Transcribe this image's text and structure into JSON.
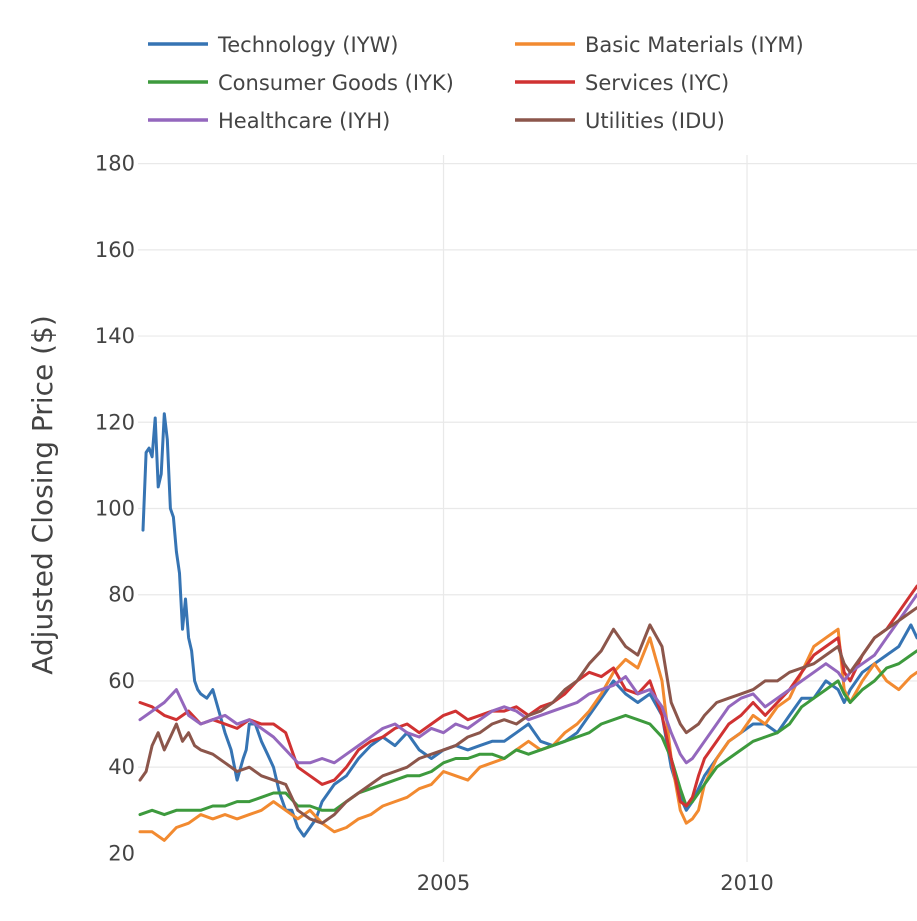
{
  "chart_data": {
    "type": "line",
    "title": "",
    "xlabel": "",
    "ylabel": "Adjusted Closing Price ($)",
    "xlim": [
      2000.0,
      2012.8
    ],
    "ylim": [
      18,
      182
    ],
    "yticks": [
      20,
      40,
      60,
      80,
      100,
      120,
      140,
      160,
      180
    ],
    "xticks": [
      2005,
      2010
    ],
    "grid": true,
    "legend_position": "top",
    "series": [
      {
        "name": "Technology (IYW)",
        "color": "#3674b3",
        "x": [
          2000.05,
          2000.1,
          2000.15,
          2000.2,
          2000.25,
          2000.3,
          2000.35,
          2000.4,
          2000.45,
          2000.5,
          2000.55,
          2000.6,
          2000.65,
          2000.7,
          2000.75,
          2000.8,
          2000.85,
          2000.9,
          2000.95,
          2001.0,
          2001.1,
          2001.2,
          2001.3,
          2001.4,
          2001.5,
          2001.6,
          2001.7,
          2001.75,
          2001.8,
          2001.9,
          2002.0,
          2002.1,
          2002.2,
          2002.3,
          2002.4,
          2002.5,
          2002.6,
          2002.7,
          2002.8,
          2002.9,
          2003.0,
          2003.2,
          2003.4,
          2003.6,
          2003.8,
          2004.0,
          2004.2,
          2004.4,
          2004.6,
          2004.8,
          2005.0,
          2005.2,
          2005.4,
          2005.6,
          2005.8,
          2006.0,
          2006.2,
          2006.4,
          2006.6,
          2006.8,
          2007.0,
          2007.2,
          2007.4,
          2007.6,
          2007.8,
          2008.0,
          2008.2,
          2008.4,
          2008.6,
          2008.75,
          2008.9,
          2009.0,
          2009.1,
          2009.2,
          2009.3,
          2009.5,
          2009.7,
          2009.9,
          2010.1,
          2010.3,
          2010.5,
          2010.7,
          2010.9,
          2011.1,
          2011.3,
          2011.5,
          2011.6,
          2011.7,
          2011.9,
          2012.1,
          2012.3,
          2012.5,
          2012.7,
          2012.8
        ],
        "values": [
          95,
          113,
          114,
          112,
          121,
          105,
          108,
          122,
          116,
          100,
          98,
          90,
          85,
          72,
          79,
          70,
          67,
          60,
          58,
          57,
          56,
          58,
          53,
          48,
          44,
          37,
          42,
          44,
          50,
          50,
          46,
          43,
          40,
          34,
          30,
          30,
          26,
          24,
          26,
          28,
          32,
          36,
          38,
          42,
          45,
          47,
          45,
          48,
          44,
          42,
          44,
          45,
          44,
          45,
          46,
          46,
          48,
          50,
          46,
          45,
          46,
          48,
          52,
          56,
          60,
          57,
          55,
          57,
          52,
          40,
          33,
          30,
          32,
          35,
          38,
          42,
          46,
          48,
          50,
          50,
          48,
          52,
          56,
          56,
          60,
          58,
          55,
          58,
          62,
          64,
          66,
          68,
          73,
          70
        ]
      },
      {
        "name": "Basic Materials (IYM)",
        "color": "#f28a30",
        "x": [
          2000.0,
          2000.2,
          2000.4,
          2000.6,
          2000.8,
          2001.0,
          2001.2,
          2001.4,
          2001.6,
          2001.8,
          2002.0,
          2002.2,
          2002.4,
          2002.6,
          2002.8,
          2003.0,
          2003.2,
          2003.4,
          2003.6,
          2003.8,
          2004.0,
          2004.2,
          2004.4,
          2004.6,
          2004.8,
          2005.0,
          2005.2,
          2005.4,
          2005.6,
          2005.8,
          2006.0,
          2006.2,
          2006.4,
          2006.6,
          2006.8,
          2007.0,
          2007.2,
          2007.4,
          2007.6,
          2007.8,
          2008.0,
          2008.2,
          2008.4,
          2008.6,
          2008.75,
          2008.9,
          2009.0,
          2009.1,
          2009.2,
          2009.3,
          2009.5,
          2009.7,
          2009.9,
          2010.1,
          2010.3,
          2010.5,
          2010.7,
          2010.9,
          2011.1,
          2011.3,
          2011.5,
          2011.6,
          2011.7,
          2011.9,
          2012.1,
          2012.3,
          2012.5,
          2012.7,
          2012.8
        ],
        "values": [
          25,
          25,
          23,
          26,
          27,
          29,
          28,
          29,
          28,
          29,
          30,
          32,
          30,
          28,
          30,
          27,
          25,
          26,
          28,
          29,
          31,
          32,
          33,
          35,
          36,
          39,
          38,
          37,
          40,
          41,
          42,
          44,
          46,
          44,
          45,
          48,
          50,
          53,
          57,
          62,
          65,
          63,
          70,
          60,
          42,
          30,
          27,
          28,
          30,
          36,
          42,
          46,
          48,
          52,
          50,
          54,
          56,
          62,
          68,
          70,
          72,
          58,
          55,
          60,
          64,
          60,
          58,
          61,
          62
        ]
      },
      {
        "name": "Consumer Goods (IYK)",
        "color": "#3d9a3d",
        "x": [
          2000.0,
          2000.2,
          2000.4,
          2000.6,
          2000.8,
          2001.0,
          2001.2,
          2001.4,
          2001.6,
          2001.8,
          2002.0,
          2002.2,
          2002.4,
          2002.6,
          2002.8,
          2003.0,
          2003.2,
          2003.4,
          2003.6,
          2003.8,
          2004.0,
          2004.2,
          2004.4,
          2004.6,
          2004.8,
          2005.0,
          2005.2,
          2005.4,
          2005.6,
          2005.8,
          2006.0,
          2006.2,
          2006.4,
          2006.6,
          2006.8,
          2007.0,
          2007.2,
          2007.4,
          2007.6,
          2007.8,
          2008.0,
          2008.2,
          2008.4,
          2008.6,
          2008.75,
          2008.9,
          2009.0,
          2009.1,
          2009.2,
          2009.3,
          2009.5,
          2009.7,
          2009.9,
          2010.1,
          2010.3,
          2010.5,
          2010.7,
          2010.9,
          2011.1,
          2011.3,
          2011.5,
          2011.6,
          2011.7,
          2011.9,
          2012.1,
          2012.3,
          2012.5,
          2012.7,
          2012.8
        ],
        "values": [
          29,
          30,
          29,
          30,
          30,
          30,
          31,
          31,
          32,
          32,
          33,
          34,
          34,
          31,
          31,
          30,
          30,
          32,
          34,
          35,
          36,
          37,
          38,
          38,
          39,
          41,
          42,
          42,
          43,
          43,
          42,
          44,
          43,
          44,
          45,
          46,
          47,
          48,
          50,
          51,
          52,
          51,
          50,
          47,
          42,
          35,
          31,
          32,
          34,
          36,
          40,
          42,
          44,
          46,
          47,
          48,
          50,
          54,
          56,
          58,
          60,
          57,
          55,
          58,
          60,
          63,
          64,
          66,
          67
        ]
      },
      {
        "name": "Services (IYC)",
        "color": "#d03232",
        "x": [
          2000.0,
          2000.2,
          2000.4,
          2000.6,
          2000.8,
          2001.0,
          2001.2,
          2001.4,
          2001.6,
          2001.8,
          2002.0,
          2002.2,
          2002.4,
          2002.6,
          2002.8,
          2003.0,
          2003.2,
          2003.4,
          2003.6,
          2003.8,
          2004.0,
          2004.2,
          2004.4,
          2004.6,
          2004.8,
          2005.0,
          2005.2,
          2005.4,
          2005.6,
          2005.8,
          2006.0,
          2006.2,
          2006.4,
          2006.6,
          2006.8,
          2007.0,
          2007.2,
          2007.4,
          2007.6,
          2007.8,
          2008.0,
          2008.2,
          2008.4,
          2008.6,
          2008.75,
          2008.9,
          2009.0,
          2009.1,
          2009.2,
          2009.3,
          2009.5,
          2009.7,
          2009.9,
          2010.1,
          2010.3,
          2010.5,
          2010.7,
          2010.9,
          2011.1,
          2011.3,
          2011.5,
          2011.6,
          2011.7,
          2011.9,
          2012.1,
          2012.3,
          2012.5,
          2012.7,
          2012.8
        ],
        "values": [
          55,
          54,
          52,
          51,
          53,
          50,
          51,
          50,
          49,
          51,
          50,
          50,
          48,
          40,
          38,
          36,
          37,
          40,
          44,
          46,
          47,
          49,
          50,
          48,
          50,
          52,
          53,
          51,
          52,
          53,
          53,
          54,
          52,
          54,
          55,
          57,
          60,
          62,
          61,
          63,
          58,
          57,
          60,
          52,
          42,
          32,
          31,
          33,
          38,
          42,
          46,
          50,
          52,
          55,
          52,
          55,
          58,
          62,
          66,
          68,
          70,
          62,
          60,
          66,
          70,
          72,
          76,
          80,
          82
        ]
      },
      {
        "name": "Healthcare (IYH)",
        "color": "#9467bd",
        "x": [
          2000.0,
          2000.2,
          2000.4,
          2000.6,
          2000.8,
          2001.0,
          2001.2,
          2001.4,
          2001.6,
          2001.8,
          2002.0,
          2002.2,
          2002.4,
          2002.6,
          2002.8,
          2003.0,
          2003.2,
          2003.4,
          2003.6,
          2003.8,
          2004.0,
          2004.2,
          2004.4,
          2004.6,
          2004.8,
          2005.0,
          2005.2,
          2005.4,
          2005.6,
          2005.8,
          2006.0,
          2006.2,
          2006.4,
          2006.6,
          2006.8,
          2007.0,
          2007.2,
          2007.4,
          2007.6,
          2007.8,
          2008.0,
          2008.2,
          2008.4,
          2008.6,
          2008.75,
          2008.9,
          2009.0,
          2009.1,
          2009.2,
          2009.3,
          2009.5,
          2009.7,
          2009.9,
          2010.1,
          2010.3,
          2010.5,
          2010.7,
          2010.9,
          2011.1,
          2011.3,
          2011.5,
          2011.6,
          2011.7,
          2011.9,
          2012.1,
          2012.3,
          2012.5,
          2012.7,
          2012.8
        ],
        "values": [
          51,
          53,
          55,
          58,
          52,
          50,
          51,
          52,
          50,
          51,
          49,
          47,
          44,
          41,
          41,
          42,
          41,
          43,
          45,
          47,
          49,
          50,
          48,
          47,
          49,
          48,
          50,
          49,
          51,
          53,
          54,
          53,
          51,
          52,
          53,
          54,
          55,
          57,
          58,
          59,
          61,
          57,
          58,
          54,
          48,
          43,
          41,
          42,
          44,
          46,
          50,
          54,
          56,
          57,
          54,
          56,
          58,
          60,
          62,
          64,
          62,
          60,
          62,
          64,
          66,
          70,
          74,
          78,
          80
        ]
      },
      {
        "name": "Utilities (IDU)",
        "color": "#8c564b",
        "x": [
          2000.0,
          2000.1,
          2000.2,
          2000.3,
          2000.4,
          2000.5,
          2000.6,
          2000.7,
          2000.8,
          2000.9,
          2001.0,
          2001.2,
          2001.4,
          2001.6,
          2001.8,
          2002.0,
          2002.2,
          2002.4,
          2002.6,
          2002.8,
          2003.0,
          2003.2,
          2003.4,
          2003.6,
          2003.8,
          2004.0,
          2004.2,
          2004.4,
          2004.6,
          2004.8,
          2005.0,
          2005.2,
          2005.4,
          2005.6,
          2005.8,
          2006.0,
          2006.2,
          2006.4,
          2006.6,
          2006.8,
          2007.0,
          2007.2,
          2007.4,
          2007.6,
          2007.8,
          2008.0,
          2008.2,
          2008.4,
          2008.6,
          2008.75,
          2008.9,
          2009.0,
          2009.1,
          2009.2,
          2009.3,
          2009.5,
          2009.7,
          2009.9,
          2010.1,
          2010.3,
          2010.5,
          2010.7,
          2010.9,
          2011.1,
          2011.3,
          2011.5,
          2011.6,
          2011.7,
          2011.9,
          2012.1,
          2012.3,
          2012.5,
          2012.7,
          2012.8
        ],
        "values": [
          37,
          39,
          45,
          48,
          44,
          47,
          50,
          46,
          48,
          45,
          44,
          43,
          41,
          39,
          40,
          38,
          37,
          36,
          30,
          28,
          27,
          29,
          32,
          34,
          36,
          38,
          39,
          40,
          42,
          43,
          44,
          45,
          47,
          48,
          50,
          51,
          50,
          52,
          53,
          55,
          58,
          60,
          64,
          67,
          72,
          68,
          66,
          73,
          68,
          55,
          50,
          48,
          49,
          50,
          52,
          55,
          56,
          57,
          58,
          60,
          60,
          62,
          63,
          64,
          66,
          68,
          64,
          62,
          66,
          70,
          72,
          74,
          76,
          77
        ]
      }
    ]
  }
}
